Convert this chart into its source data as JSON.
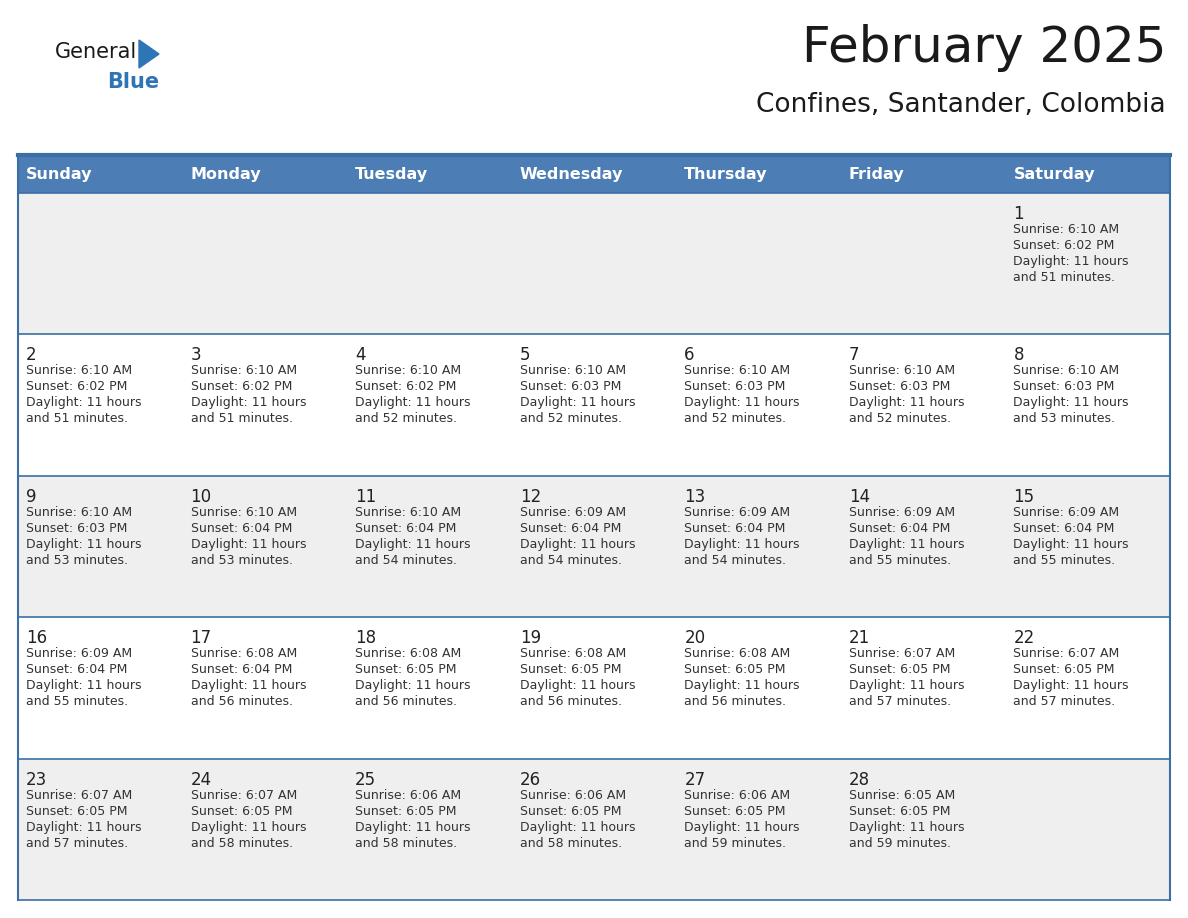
{
  "title": "February 2025",
  "subtitle": "Confines, Santander, Colombia",
  "header_bg": "#4C7DB5",
  "header_text_color": "#FFFFFF",
  "cell_bg_odd": "#EFEFEF",
  "cell_bg_even": "#FFFFFF",
  "border_color": "#3B6EA5",
  "day_headers": [
    "Sunday",
    "Monday",
    "Tuesday",
    "Wednesday",
    "Thursday",
    "Friday",
    "Saturday"
  ],
  "days_data": [
    {
      "day": 1,
      "col": 6,
      "row": 0,
      "sunrise": "6:10 AM",
      "sunset": "6:02 PM",
      "daylight": "11 hours and 51 minutes."
    },
    {
      "day": 2,
      "col": 0,
      "row": 1,
      "sunrise": "6:10 AM",
      "sunset": "6:02 PM",
      "daylight": "11 hours and 51 minutes."
    },
    {
      "day": 3,
      "col": 1,
      "row": 1,
      "sunrise": "6:10 AM",
      "sunset": "6:02 PM",
      "daylight": "11 hours and 51 minutes."
    },
    {
      "day": 4,
      "col": 2,
      "row": 1,
      "sunrise": "6:10 AM",
      "sunset": "6:02 PM",
      "daylight": "11 hours and 52 minutes."
    },
    {
      "day": 5,
      "col": 3,
      "row": 1,
      "sunrise": "6:10 AM",
      "sunset": "6:03 PM",
      "daylight": "11 hours and 52 minutes."
    },
    {
      "day": 6,
      "col": 4,
      "row": 1,
      "sunrise": "6:10 AM",
      "sunset": "6:03 PM",
      "daylight": "11 hours and 52 minutes."
    },
    {
      "day": 7,
      "col": 5,
      "row": 1,
      "sunrise": "6:10 AM",
      "sunset": "6:03 PM",
      "daylight": "11 hours and 52 minutes."
    },
    {
      "day": 8,
      "col": 6,
      "row": 1,
      "sunrise": "6:10 AM",
      "sunset": "6:03 PM",
      "daylight": "11 hours and 53 minutes."
    },
    {
      "day": 9,
      "col": 0,
      "row": 2,
      "sunrise": "6:10 AM",
      "sunset": "6:03 PM",
      "daylight": "11 hours and 53 minutes."
    },
    {
      "day": 10,
      "col": 1,
      "row": 2,
      "sunrise": "6:10 AM",
      "sunset": "6:04 PM",
      "daylight": "11 hours and 53 minutes."
    },
    {
      "day": 11,
      "col": 2,
      "row": 2,
      "sunrise": "6:10 AM",
      "sunset": "6:04 PM",
      "daylight": "11 hours and 54 minutes."
    },
    {
      "day": 12,
      "col": 3,
      "row": 2,
      "sunrise": "6:09 AM",
      "sunset": "6:04 PM",
      "daylight": "11 hours and 54 minutes."
    },
    {
      "day": 13,
      "col": 4,
      "row": 2,
      "sunrise": "6:09 AM",
      "sunset": "6:04 PM",
      "daylight": "11 hours and 54 minutes."
    },
    {
      "day": 14,
      "col": 5,
      "row": 2,
      "sunrise": "6:09 AM",
      "sunset": "6:04 PM",
      "daylight": "11 hours and 55 minutes."
    },
    {
      "day": 15,
      "col": 6,
      "row": 2,
      "sunrise": "6:09 AM",
      "sunset": "6:04 PM",
      "daylight": "11 hours and 55 minutes."
    },
    {
      "day": 16,
      "col": 0,
      "row": 3,
      "sunrise": "6:09 AM",
      "sunset": "6:04 PM",
      "daylight": "11 hours and 55 minutes."
    },
    {
      "day": 17,
      "col": 1,
      "row": 3,
      "sunrise": "6:08 AM",
      "sunset": "6:04 PM",
      "daylight": "11 hours and 56 minutes."
    },
    {
      "day": 18,
      "col": 2,
      "row": 3,
      "sunrise": "6:08 AM",
      "sunset": "6:05 PM",
      "daylight": "11 hours and 56 minutes."
    },
    {
      "day": 19,
      "col": 3,
      "row": 3,
      "sunrise": "6:08 AM",
      "sunset": "6:05 PM",
      "daylight": "11 hours and 56 minutes."
    },
    {
      "day": 20,
      "col": 4,
      "row": 3,
      "sunrise": "6:08 AM",
      "sunset": "6:05 PM",
      "daylight": "11 hours and 56 minutes."
    },
    {
      "day": 21,
      "col": 5,
      "row": 3,
      "sunrise": "6:07 AM",
      "sunset": "6:05 PM",
      "daylight": "11 hours and 57 minutes."
    },
    {
      "day": 22,
      "col": 6,
      "row": 3,
      "sunrise": "6:07 AM",
      "sunset": "6:05 PM",
      "daylight": "11 hours and 57 minutes."
    },
    {
      "day": 23,
      "col": 0,
      "row": 4,
      "sunrise": "6:07 AM",
      "sunset": "6:05 PM",
      "daylight": "11 hours and 57 minutes."
    },
    {
      "day": 24,
      "col": 1,
      "row": 4,
      "sunrise": "6:07 AM",
      "sunset": "6:05 PM",
      "daylight": "11 hours and 58 minutes."
    },
    {
      "day": 25,
      "col": 2,
      "row": 4,
      "sunrise": "6:06 AM",
      "sunset": "6:05 PM",
      "daylight": "11 hours and 58 minutes."
    },
    {
      "day": 26,
      "col": 3,
      "row": 4,
      "sunrise": "6:06 AM",
      "sunset": "6:05 PM",
      "daylight": "11 hours and 58 minutes."
    },
    {
      "day": 27,
      "col": 4,
      "row": 4,
      "sunrise": "6:06 AM",
      "sunset": "6:05 PM",
      "daylight": "11 hours and 59 minutes."
    },
    {
      "day": 28,
      "col": 5,
      "row": 4,
      "sunrise": "6:05 AM",
      "sunset": "6:05 PM",
      "daylight": "11 hours and 59 minutes."
    }
  ],
  "num_rows": 5,
  "num_cols": 7,
  "logo_color_general": "#1a1a1a",
  "logo_color_blue": "#2E75B6",
  "logo_triangle_color": "#2E75B6",
  "fig_width": 11.88,
  "fig_height": 9.18,
  "dpi": 100
}
